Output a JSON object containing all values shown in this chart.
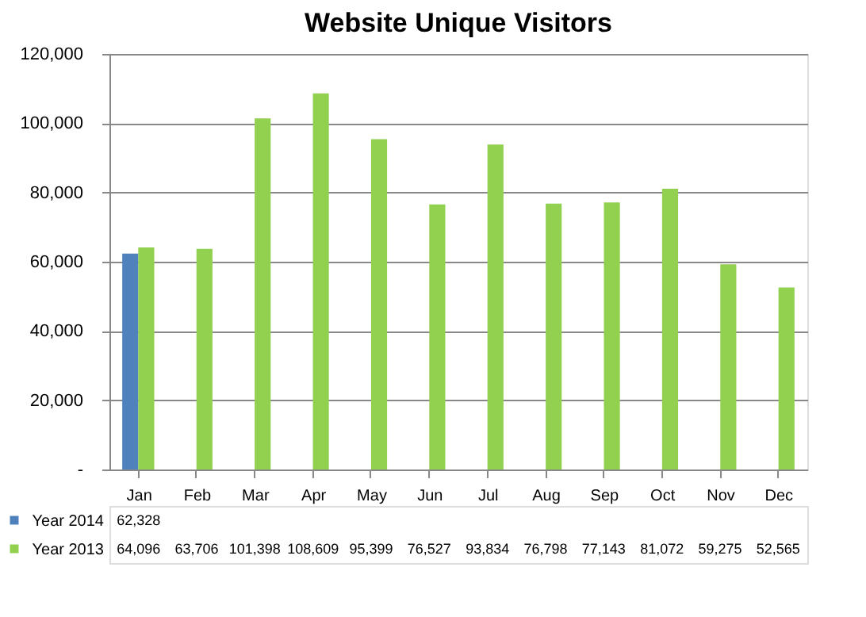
{
  "chart_data": {
    "type": "bar",
    "title": "Website Unique Visitors",
    "categories": [
      "Jan",
      "Feb",
      "Mar",
      "Apr",
      "May",
      "Jun",
      "Jul",
      "Aug",
      "Sep",
      "Oct",
      "Nov",
      "Dec"
    ],
    "series": [
      {
        "name": "Year 2014",
        "color": "#4f81bd",
        "values": [
          62328,
          null,
          null,
          null,
          null,
          null,
          null,
          null,
          null,
          null,
          null,
          null
        ],
        "value_labels": [
          "62,328",
          null,
          null,
          null,
          null,
          null,
          null,
          null,
          null,
          null,
          null,
          null
        ]
      },
      {
        "name": "Year 2013",
        "color": "#92d050",
        "values": [
          64096,
          63706,
          101398,
          108609,
          95399,
          76527,
          93834,
          76798,
          77143,
          81072,
          59275,
          52565
        ],
        "value_labels": [
          "64,096",
          "63,706",
          "101,398",
          "108,609",
          "95,399",
          "76,527",
          "93,834",
          "76,798",
          "77,143",
          "81,072",
          "59,275",
          "52,565"
        ]
      }
    ],
    "ylim": [
      0,
      120000
    ],
    "yticks": [
      {
        "value": 0,
        "label": "-"
      },
      {
        "value": 20000,
        "label": "20,000"
      },
      {
        "value": 40000,
        "label": "40,000"
      },
      {
        "value": 60000,
        "label": "60,000"
      },
      {
        "value": 80000,
        "label": "80,000"
      },
      {
        "value": 100000,
        "label": "100,000"
      },
      {
        "value": 120000,
        "label": "120,000"
      }
    ],
    "grid": "y",
    "legend": "bottom"
  }
}
